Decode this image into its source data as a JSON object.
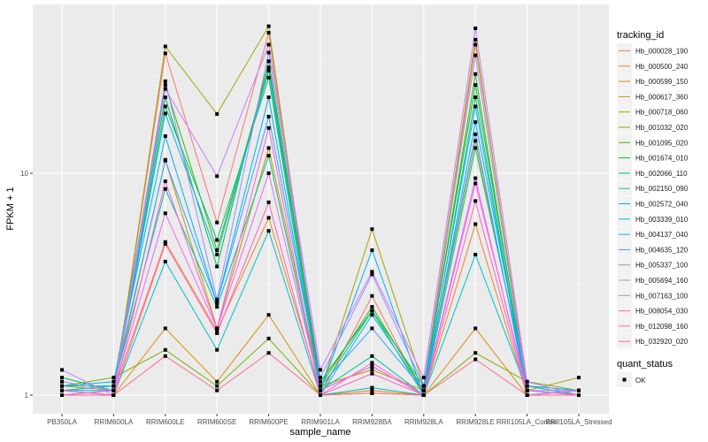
{
  "chart_data": {
    "type": "line",
    "xlabel": "sample_name",
    "ylabel": "FPKM + 1",
    "y_scale": "log10",
    "ylim": [
      0.9,
      75
    ],
    "y_ticks": [
      1,
      10
    ],
    "y_tick_labels": [
      "1",
      "10"
    ],
    "grid": true,
    "legend_position": "right",
    "categories": [
      "PB350LA",
      "RRIM600LA",
      "RRIM600LE",
      "RRIM600SE",
      "RRIM600PE",
      "RRIM901LA",
      "RRIM928BA",
      "RRIM928LA",
      "RRIM928LE",
      "RRII105LA_Control",
      "RRII105LA_Stressed"
    ],
    "legend_title": "tracking_id",
    "shape_legend_title": "quant_status",
    "shape_legend_items": [
      "OK"
    ],
    "series": [
      {
        "name": "Hb_000028_190",
        "color": "#F8766D",
        "values": [
          1.05,
          1.0,
          34.7,
          6.0,
          43,
          1.0,
          2.8,
          1.0,
          38,
          1.1,
          1.0
        ]
      },
      {
        "name": "Hb_000500_240",
        "color": "#EA8331",
        "values": [
          1.0,
          1.05,
          4.9,
          1.95,
          6.3,
          1.05,
          1.35,
          1.0,
          5.9,
          1.0,
          1.05
        ]
      },
      {
        "name": "Hb_000599_150",
        "color": "#D89000",
        "values": [
          1.05,
          1.0,
          2.0,
          1.15,
          2.3,
          1.0,
          1.05,
          1.0,
          2.0,
          1.0,
          1.0
        ]
      },
      {
        "name": "Hb_000617_360",
        "color": "#C09B00",
        "values": [
          1.1,
          1.05,
          11.5,
          2.0,
          13,
          1.1,
          1.3,
          1.05,
          14,
          1.05,
          1.0
        ]
      },
      {
        "name": "Hb_000718_060",
        "color": "#A3A500",
        "values": [
          1.0,
          1.0,
          37.3,
          18.5,
          46,
          1.05,
          5.6,
          1.1,
          40,
          1.05,
          1.2
        ]
      },
      {
        "name": "Hb_001032_020",
        "color": "#7CAE00",
        "values": [
          1.1,
          1.2,
          1.6,
          1.1,
          1.8,
          1.0,
          1.02,
          1.0,
          1.55,
          1.15,
          1.05
        ]
      },
      {
        "name": "Hb_001095_020",
        "color": "#39B600",
        "values": [
          1.05,
          1.1,
          25,
          4.5,
          30,
          1.1,
          2.5,
          1.05,
          28,
          1.0,
          1.05
        ]
      },
      {
        "name": "Hb_001674_010",
        "color": "#00BB4E",
        "values": [
          1.2,
          1.05,
          22,
          3.8,
          32,
          1.15,
          2.4,
          1.1,
          25,
          1.05,
          1.0
        ]
      },
      {
        "name": "Hb_002066_110",
        "color": "#00BF7D",
        "values": [
          1.0,
          1.05,
          20,
          5.0,
          27,
          1.05,
          2.4,
          1.0,
          22,
          1.0,
          1.05
        ]
      },
      {
        "name": "Hb_002150_090",
        "color": "#00C1A3",
        "values": [
          1.1,
          1.1,
          8.5,
          2.5,
          12,
          1.05,
          1.5,
          1.0,
          13,
          1.1,
          1.0
        ]
      },
      {
        "name": "Hb_002572_040",
        "color": "#00BFC4",
        "values": [
          1.0,
          1.0,
          4.0,
          1.6,
          5.5,
          1.0,
          1.08,
          1.0,
          4.3,
          1.05,
          1.0
        ]
      },
      {
        "name": "Hb_003339_010",
        "color": "#00BAE0",
        "values": [
          1.05,
          1.05,
          18.6,
          4.3,
          29,
          1.0,
          2.3,
          1.05,
          20,
          1.0,
          1.05
        ]
      },
      {
        "name": "Hb_004137_040",
        "color": "#00B0F6",
        "values": [
          1.1,
          1.15,
          14.7,
          2.6,
          22,
          1.05,
          4.5,
          1.0,
          17,
          1.1,
          1.05
        ]
      },
      {
        "name": "Hb_004635_120",
        "color": "#35A2FF",
        "values": [
          1.05,
          1.1,
          11.4,
          2.6,
          18,
          1.1,
          2.0,
          1.05,
          15,
          1.0,
          1.0
        ]
      },
      {
        "name": "Hb_005337_100",
        "color": "#9590FF",
        "values": [
          1.15,
          1.05,
          26,
          2.7,
          35,
          1.2,
          3.5,
          1.1,
          34,
          1.05,
          1.05
        ]
      },
      {
        "name": "Hb_005694_160",
        "color": "#C77CFF",
        "values": [
          1.3,
          1.0,
          24,
          9.7,
          38,
          1.3,
          3.6,
          1.2,
          45,
          1.15,
          1.0
        ]
      },
      {
        "name": "Hb_007163_100",
        "color": "#E76BF3",
        "values": [
          1.0,
          1.05,
          6.6,
          2.0,
          10,
          1.05,
          1.35,
          1.0,
          9.5,
          1.0,
          1.05
        ]
      },
      {
        "name": "Hb_008054_030",
        "color": "#FA62DB",
        "values": [
          1.05,
          1.0,
          9.2,
          2.0,
          16,
          1.0,
          1.4,
          1.0,
          9.0,
          1.05,
          1.0
        ]
      },
      {
        "name": "Hb_012098_160",
        "color": "#FF62BC",
        "values": [
          1.0,
          1.0,
          4.8,
          1.9,
          7.4,
          1.0,
          1.25,
          1.0,
          7.5,
          1.0,
          1.0
        ]
      },
      {
        "name": "Hb_032920_020",
        "color": "#FF6C91",
        "values": [
          1.0,
          1.0,
          1.5,
          1.05,
          1.55,
          1.0,
          1.02,
          1.0,
          1.45,
          1.0,
          1.0
        ]
      }
    ]
  }
}
